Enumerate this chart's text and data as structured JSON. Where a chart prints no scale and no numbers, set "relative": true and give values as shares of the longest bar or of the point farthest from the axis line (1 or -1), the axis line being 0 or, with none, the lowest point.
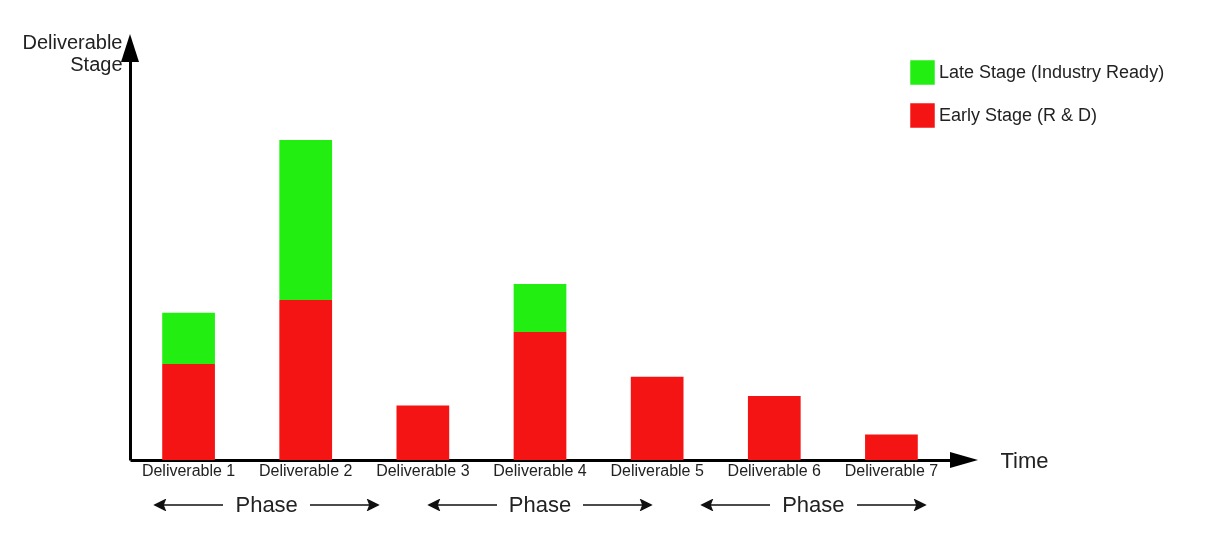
{
  "chart_data": {
    "type": "bar",
    "relative": true,
    "stacked": true,
    "xlabel": "Time",
    "ylabel": "Deliverable Stage",
    "legend": "top right",
    "categories": [
      "Deliverable 1",
      "Deliverable 2",
      "Deliverable 3",
      "Deliverable 4",
      "Deliverable 5",
      "Deliverable 6",
      "Deliverable 7"
    ],
    "series": [
      {
        "name": "Early Stage (R & D)",
        "color": "#f41414",
        "values": [
          0.3,
          0.5,
          0.17,
          0.4,
          0.26,
          0.2,
          0.08
        ]
      },
      {
        "name": "Late Stage (Industry Ready)",
        "color": "#22ee11",
        "values": [
          0.16,
          0.5,
          0,
          0.15,
          0,
          0,
          0
        ]
      }
    ],
    "annotations": [
      "Phase",
      "Phase",
      "Phase"
    ]
  }
}
